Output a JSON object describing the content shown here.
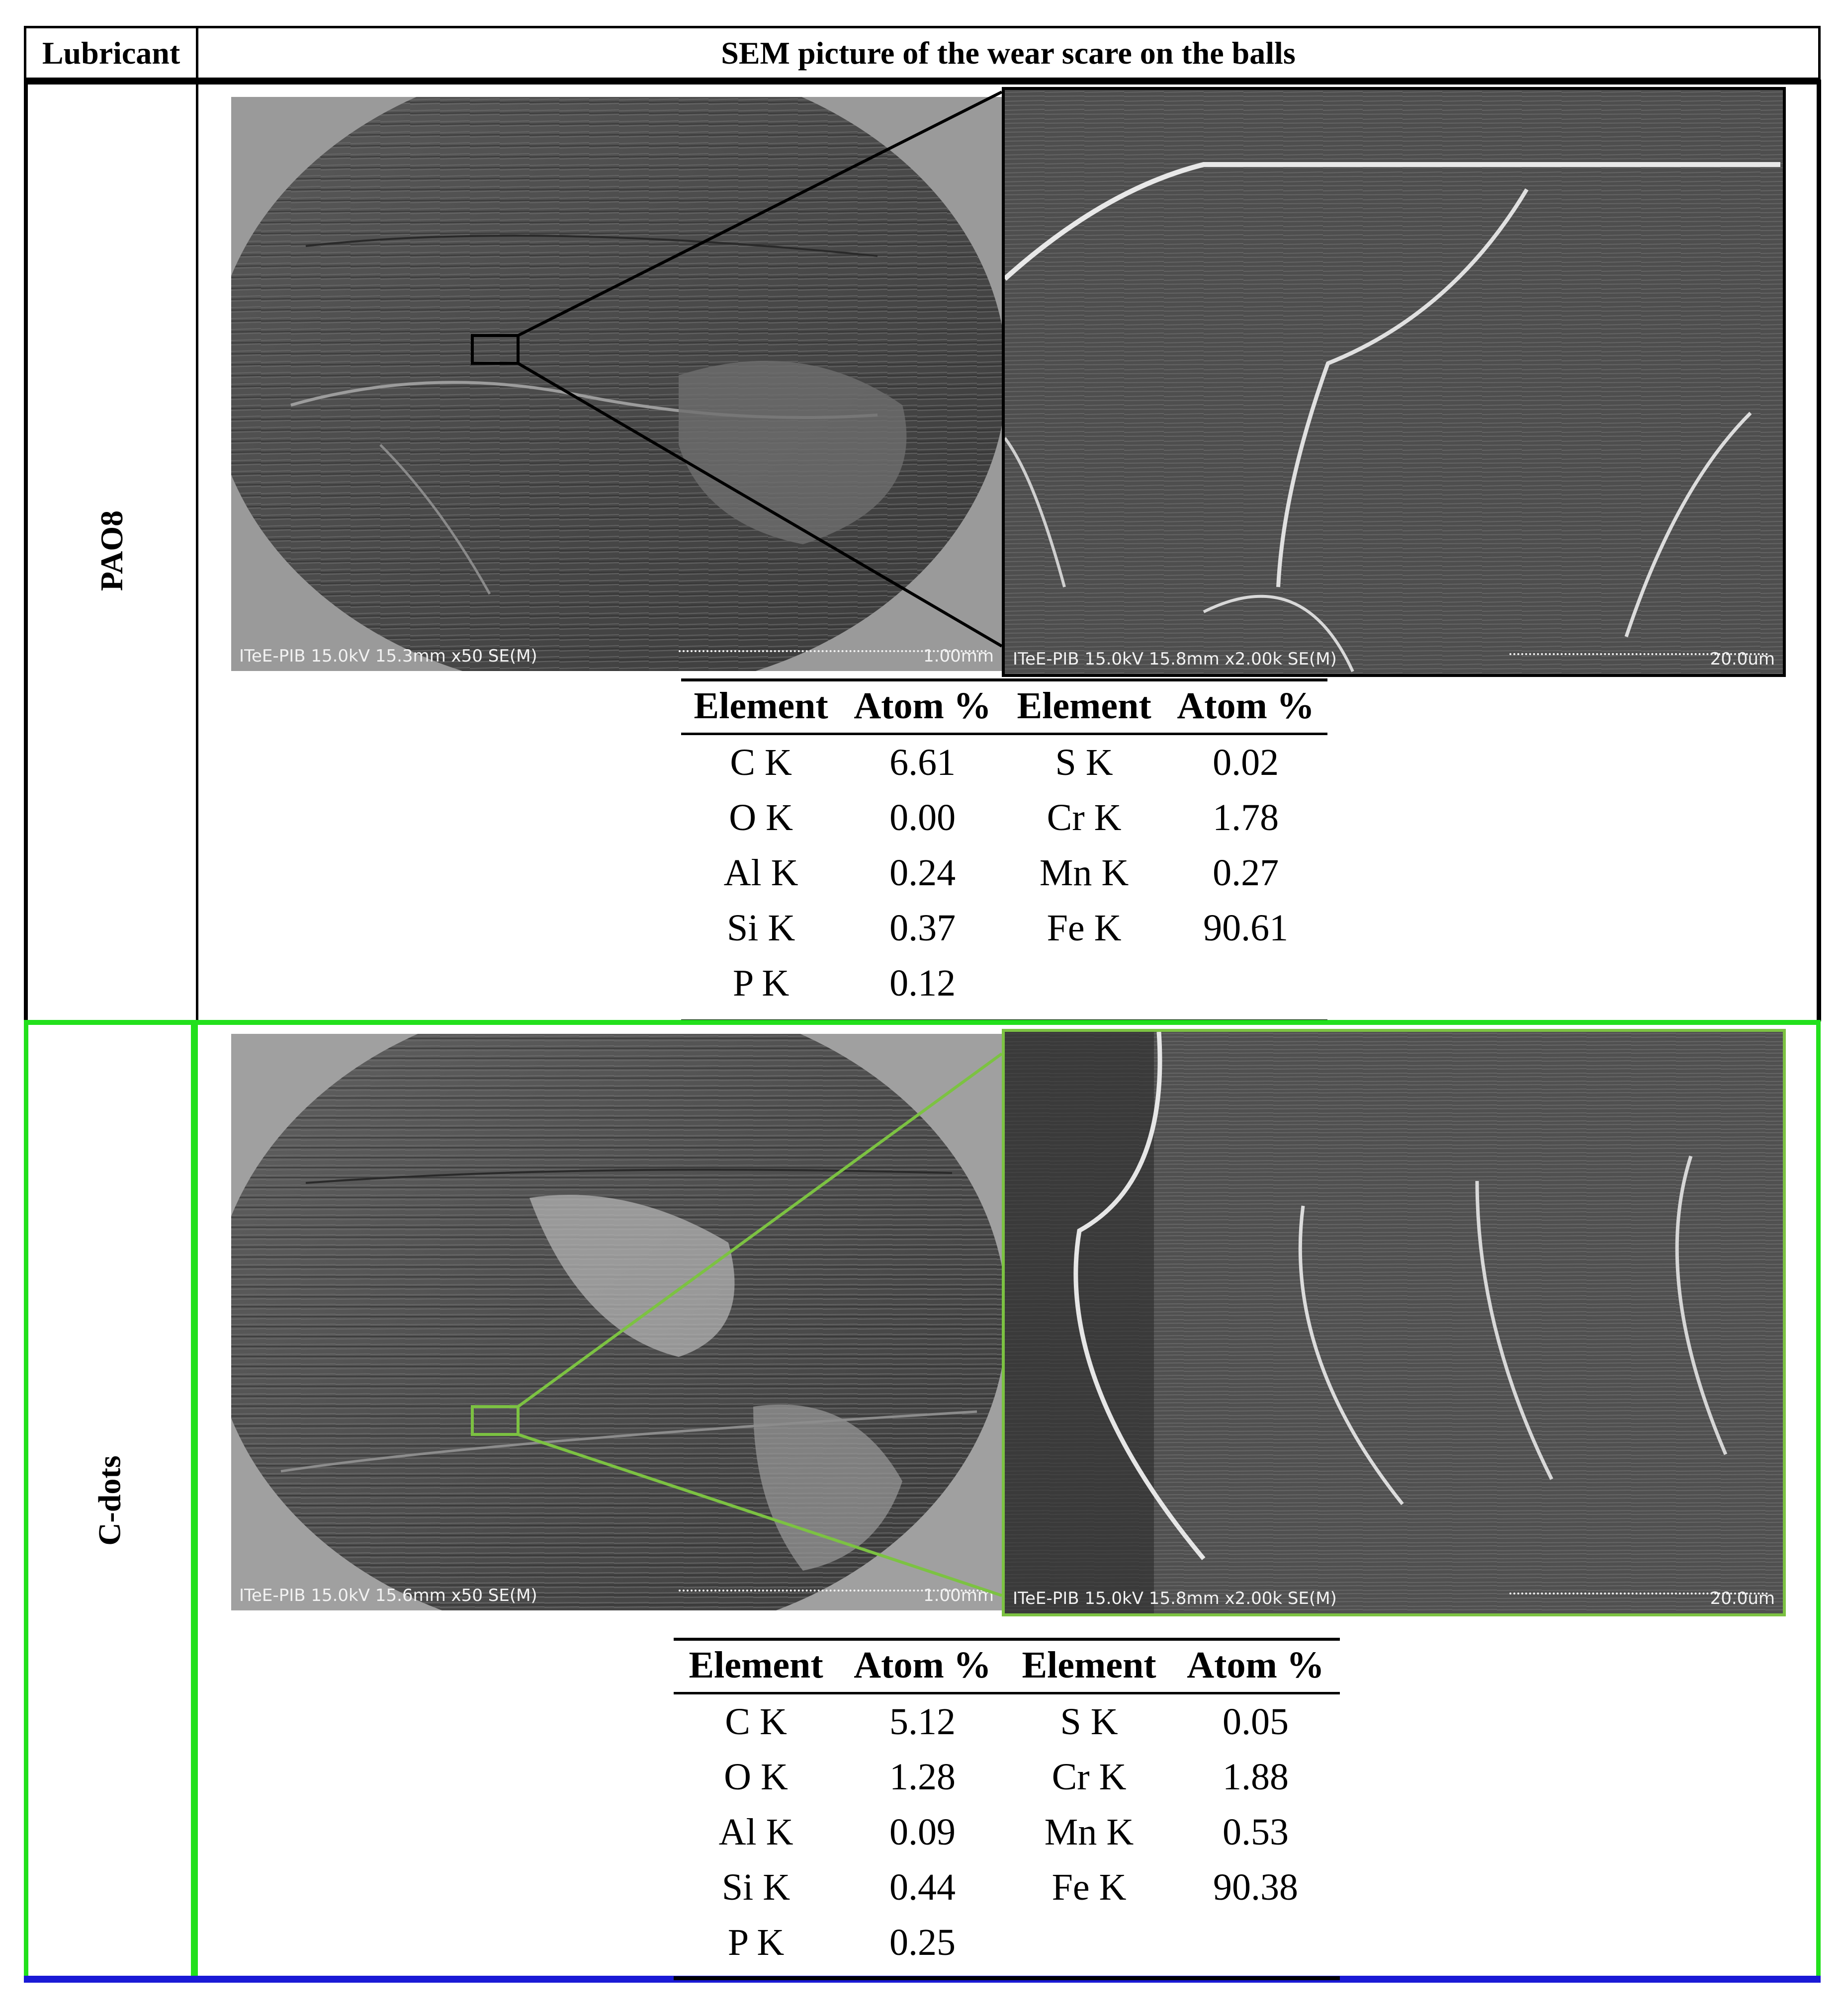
{
  "header": {
    "col1": "Lubricant",
    "col2": "SEM picture of the wear scare on the balls"
  },
  "rows": [
    {
      "lubricant": "PAO8",
      "frame_color": "#000000",
      "zoom_color": "#000000",
      "low_mag": {
        "caption": "ITeE-PIB 15.0kV 15.3mm x50 SE(M)",
        "scale": "1.00mm"
      },
      "high_mag": {
        "caption": "ITeE-PIB 15.0kV 15.8mm x2.00k SE(M)",
        "scale": "20.0um"
      },
      "eds": {
        "headers": [
          "Element",
          "Atom %",
          "Element",
          "Atom %"
        ],
        "rows": [
          [
            "C K",
            "6.61",
            "S K",
            "0.02"
          ],
          [
            "O K",
            "0.00",
            "Cr K",
            "1.78"
          ],
          [
            "Al K",
            "0.24",
            "Mn K",
            "0.27"
          ],
          [
            "Si K",
            "0.37",
            "Fe K",
            "90.61"
          ],
          [
            "P K",
            "0.12",
            "",
            ""
          ]
        ]
      }
    },
    {
      "lubricant": "C-dots",
      "frame_color": "#22e01c",
      "zoom_color": "#7cc242",
      "low_mag": {
        "caption": "ITeE-PIB 15.0kV 15.6mm x50 SE(M)",
        "scale": "1.00mm"
      },
      "high_mag": {
        "caption": "ITeE-PIB 15.0kV 15.8mm x2.00k SE(M)",
        "scale": "20.0um"
      },
      "eds": {
        "headers": [
          "Element",
          "Atom %",
          "Element",
          "Atom %"
        ],
        "rows": [
          [
            "C K",
            "5.12",
            "S K",
            "0.05"
          ],
          [
            "O K",
            "1.28",
            "Cr K",
            "1.88"
          ],
          [
            "Al K",
            "0.09",
            "Mn K",
            "0.53"
          ],
          [
            "Si K",
            "0.44",
            "Fe K",
            "90.38"
          ],
          [
            "P K",
            "0.25",
            "",
            ""
          ]
        ]
      }
    }
  ],
  "bottom_rule_color": "#1a1ad6"
}
